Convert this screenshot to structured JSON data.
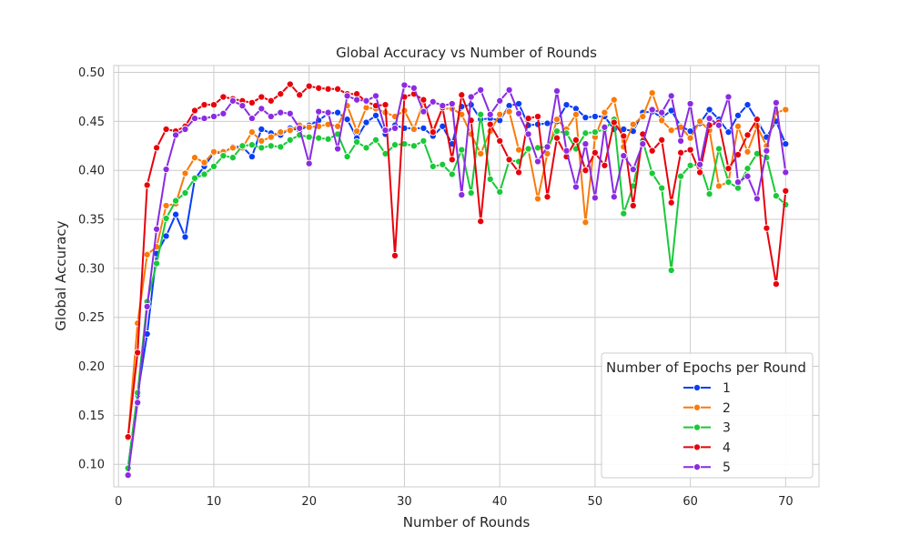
{
  "chart_data": {
    "type": "line",
    "title": "Global Accuracy vs Number of Rounds",
    "xlabel": "Number of Rounds",
    "ylabel": "Global Accuracy",
    "xlim": [
      -0.5,
      73.5
    ],
    "ylim": [
      0.077,
      0.507
    ],
    "xticks": [
      0,
      10,
      20,
      30,
      40,
      50,
      60,
      70
    ],
    "yticks": [
      0.1,
      0.15,
      0.2,
      0.25,
      0.3,
      0.35,
      0.4,
      0.45,
      0.5
    ],
    "ytick_labels": [
      "0.10",
      "0.15",
      "0.20",
      "0.25",
      "0.30",
      "0.35",
      "0.40",
      "0.45",
      "0.50"
    ],
    "grid": true,
    "legend_title": "Number of Epochs per Round",
    "legend_position": "lower-right",
    "x": [
      1,
      2,
      3,
      4,
      5,
      6,
      7,
      8,
      9,
      10,
      11,
      12,
      13,
      14,
      15,
      16,
      17,
      18,
      19,
      20,
      21,
      22,
      23,
      24,
      25,
      26,
      27,
      28,
      29,
      30,
      31,
      32,
      33,
      34,
      35,
      36,
      37,
      38,
      39,
      40,
      41,
      42,
      43,
      44,
      45,
      46,
      47,
      48,
      49,
      50,
      51,
      52,
      53,
      54,
      55,
      56,
      57,
      58,
      59,
      60,
      61,
      62,
      63,
      64,
      65,
      66,
      67,
      68,
      69,
      70
    ],
    "series": [
      {
        "name": "1",
        "color": "#0a3ef5",
        "values": [
          0.097,
          0.171,
          0.233,
          0.315,
          0.333,
          0.355,
          0.332,
          0.391,
          0.404,
          0.418,
          0.418,
          0.424,
          0.424,
          0.414,
          0.442,
          0.438,
          0.436,
          0.443,
          0.441,
          0.446,
          0.451,
          0.458,
          0.459,
          0.452,
          0.433,
          0.449,
          0.456,
          0.437,
          0.446,
          0.443,
          0.443,
          0.443,
          0.435,
          0.445,
          0.427,
          0.465,
          0.467,
          0.452,
          0.453,
          0.451,
          0.466,
          0.468,
          0.446,
          0.447,
          0.448,
          0.45,
          0.467,
          0.463,
          0.454,
          0.455,
          0.455,
          0.442,
          0.442,
          0.44,
          0.459,
          0.46,
          0.454,
          0.461,
          0.445,
          0.44,
          0.448,
          0.462,
          0.452,
          0.439,
          0.456,
          0.467,
          0.451,
          0.434,
          0.45,
          0.427
        ]
      },
      {
        "name": "2",
        "color": "#f97b0b",
        "values": [
          0.127,
          0.244,
          0.314,
          0.322,
          0.364,
          0.366,
          0.397,
          0.413,
          0.408,
          0.419,
          0.419,
          0.423,
          0.423,
          0.439,
          0.43,
          0.434,
          0.439,
          0.441,
          0.446,
          0.444,
          0.445,
          0.447,
          0.445,
          0.466,
          0.44,
          0.464,
          0.463,
          0.459,
          0.455,
          0.461,
          0.442,
          0.47,
          0.441,
          0.463,
          0.463,
          0.457,
          0.437,
          0.417,
          0.44,
          0.457,
          0.46,
          0.421,
          0.421,
          0.371,
          0.417,
          0.452,
          0.442,
          0.457,
          0.347,
          0.434,
          0.459,
          0.472,
          0.424,
          0.447,
          0.455,
          0.479,
          0.451,
          0.441,
          0.444,
          0.433,
          0.45,
          0.441,
          0.384,
          0.388,
          0.445,
          0.419,
          0.445,
          0.425,
          0.459,
          0.462
        ]
      },
      {
        "name": "3",
        "color": "#1ac938",
        "values": [
          0.096,
          0.173,
          0.266,
          0.305,
          0.351,
          0.369,
          0.377,
          0.392,
          0.396,
          0.404,
          0.415,
          0.413,
          0.425,
          0.426,
          0.423,
          0.425,
          0.424,
          0.431,
          0.436,
          0.434,
          0.433,
          0.432,
          0.437,
          0.414,
          0.429,
          0.423,
          0.431,
          0.417,
          0.426,
          0.427,
          0.425,
          0.43,
          0.404,
          0.406,
          0.396,
          0.421,
          0.377,
          0.457,
          0.391,
          0.378,
          0.41,
          0.409,
          0.422,
          0.423,
          0.424,
          0.44,
          0.438,
          0.422,
          0.438,
          0.439,
          0.442,
          0.452,
          0.356,
          0.384,
          0.43,
          0.397,
          0.382,
          0.298,
          0.394,
          0.405,
          0.406,
          0.376,
          0.422,
          0.388,
          0.382,
          0.402,
          0.417,
          0.413,
          0.374,
          0.365
        ]
      },
      {
        "name": "4",
        "color": "#e8000b",
        "values": [
          0.128,
          0.214,
          0.385,
          0.423,
          0.442,
          0.44,
          0.445,
          0.461,
          0.467,
          0.467,
          0.475,
          0.473,
          0.471,
          0.469,
          0.475,
          0.471,
          0.478,
          0.488,
          0.477,
          0.486,
          0.484,
          0.483,
          0.483,
          0.478,
          0.478,
          0.47,
          0.466,
          0.467,
          0.313,
          0.475,
          0.478,
          0.472,
          0.439,
          0.464,
          0.411,
          0.477,
          0.451,
          0.348,
          0.447,
          0.43,
          0.411,
          0.398,
          0.453,
          0.455,
          0.373,
          0.433,
          0.414,
          0.431,
          0.4,
          0.418,
          0.405,
          0.449,
          0.435,
          0.364,
          0.437,
          0.42,
          0.431,
          0.367,
          0.418,
          0.421,
          0.398,
          0.446,
          0.449,
          0.402,
          0.416,
          0.436,
          0.452,
          0.341,
          0.284,
          0.379
        ]
      },
      {
        "name": "5",
        "color": "#8b2be2",
        "values": [
          0.089,
          0.163,
          0.261,
          0.34,
          0.401,
          0.436,
          0.442,
          0.453,
          0.453,
          0.455,
          0.458,
          0.471,
          0.466,
          0.453,
          0.463,
          0.455,
          0.459,
          0.458,
          0.443,
          0.407,
          0.46,
          0.459,
          0.422,
          0.476,
          0.472,
          0.471,
          0.476,
          0.441,
          0.443,
          0.487,
          0.484,
          0.46,
          0.47,
          0.466,
          0.468,
          0.375,
          0.475,
          0.482,
          0.457,
          0.471,
          0.482,
          0.458,
          0.437,
          0.409,
          0.424,
          0.481,
          0.42,
          0.383,
          0.427,
          0.372,
          0.444,
          0.373,
          0.415,
          0.401,
          0.427,
          0.462,
          0.459,
          0.476,
          0.43,
          0.468,
          0.406,
          0.453,
          0.446,
          0.475,
          0.388,
          0.394,
          0.371,
          0.42,
          0.469,
          0.398
        ]
      }
    ]
  }
}
